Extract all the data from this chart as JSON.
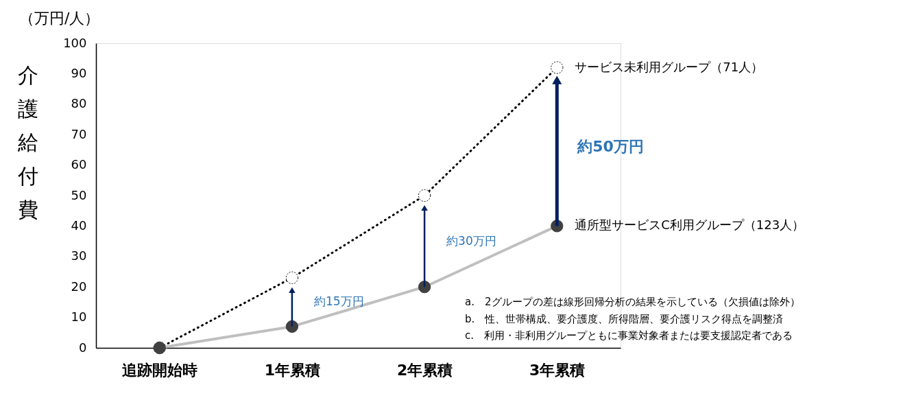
{
  "chart_data": {
    "type": "line",
    "title": "（万円/人）",
    "ylabel": "介護給付費",
    "categories": [
      "追跡開始時",
      "1年累積",
      "2年累積",
      "3年累積"
    ],
    "series": [
      {
        "name": "サービス未利用グループ（71人）",
        "color": "#000000",
        "values": [
          0,
          23,
          50,
          92
        ],
        "line_style": "dotted",
        "marker": "circle"
      },
      {
        "name": "通所型サービスC利用グループ（123人）",
        "color": "#bfbfbf",
        "values": [
          0,
          7,
          20,
          40
        ],
        "line_style": "solid",
        "marker": "circle"
      }
    ],
    "ylim": [
      0,
      100
    ],
    "yticks": [
      0,
      10,
      20,
      30,
      40,
      50,
      60,
      70,
      80,
      90,
      100
    ],
    "grid": false,
    "annotations": [
      "約15万円",
      "約30万円",
      "約50万円",
      "a.　2グループの差は線形回帰分析の結果を示している（欠損値は除外）",
      "b.　性、世帯構成、要介護度、所得階層、要介護リスク得点を調整済",
      "c.　利用・非利用グループともに事業対象者または要支援認定者である"
    ]
  }
}
